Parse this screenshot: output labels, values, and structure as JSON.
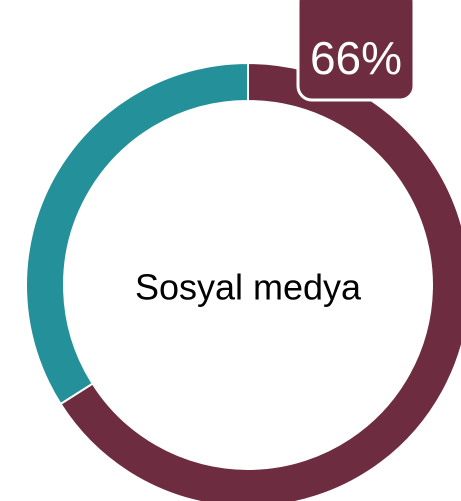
{
  "chart_data": {
    "type": "donut",
    "center_label": "Sosyal medya",
    "values": [
      66,
      34
    ],
    "value_labels": [
      "66%",
      null
    ],
    "colors": [
      "#6e2c40",
      "#24909a"
    ]
  }
}
